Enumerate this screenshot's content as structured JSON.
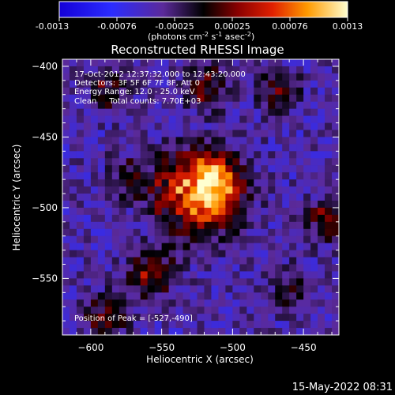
{
  "colorbar": {
    "ticks": [
      "-0.0013",
      "-0.00076",
      "-0.00025",
      "0.00025",
      "0.00076",
      "0.0013"
    ],
    "unit": "(photons cm",
    "unit_sup1": "-2",
    "unit_mid": " s",
    "unit_sup2": "-1",
    "unit_end": " asec",
    "unit_sup3": "-2",
    "unit_close": ")"
  },
  "info": {
    "line1": "17-Oct-2012 12:37:32.000 to 12:43:20.000",
    "line2": "Detectors: 3F 5F 6F 7F 8F, Att 0",
    "line3": "Energy Range: 12.0 - 25.0 keV",
    "line4": "Clean     Total counts: 7.70E+03",
    "peak": "Position of Peak = [-527,-490]"
  },
  "footer_timestamp": "15-May-2022 08:31",
  "chart_data": {
    "type": "heatmap",
    "title": "Reconstructed RHESSI Image",
    "xlabel": "Heliocentric X (arcsec)",
    "ylabel": "Heliocentric Y (arcsec)",
    "xlim": [
      -620,
      -425
    ],
    "ylim": [
      -590,
      -395
    ],
    "x_ticks": [
      -600,
      -550,
      -500,
      -450
    ],
    "y_ticks": [
      -550,
      -500,
      -450,
      -400
    ],
    "color_range": [
      -0.0013,
      0.0013
    ],
    "peak": [
      -527,
      -490
    ],
    "sources": [
      {
        "x": -527,
        "y": -488,
        "value": 0.0013
      },
      {
        "x": -515,
        "y": -478,
        "value": 0.0009
      },
      {
        "x": -560,
        "y": -545,
        "value": 0.0008
      },
      {
        "x": -590,
        "y": -575,
        "value": 0.0006
      },
      {
        "x": -520,
        "y": -412,
        "value": 0.0006
      },
      {
        "x": -590,
        "y": -415,
        "value": 0.0005
      },
      {
        "x": -470,
        "y": -415,
        "value": 0.0005
      },
      {
        "x": -435,
        "y": -505,
        "value": 0.0006
      },
      {
        "x": -460,
        "y": -555,
        "value": 0.0004
      },
      {
        "x": -575,
        "y": -475,
        "value": 0.0004
      }
    ]
  }
}
